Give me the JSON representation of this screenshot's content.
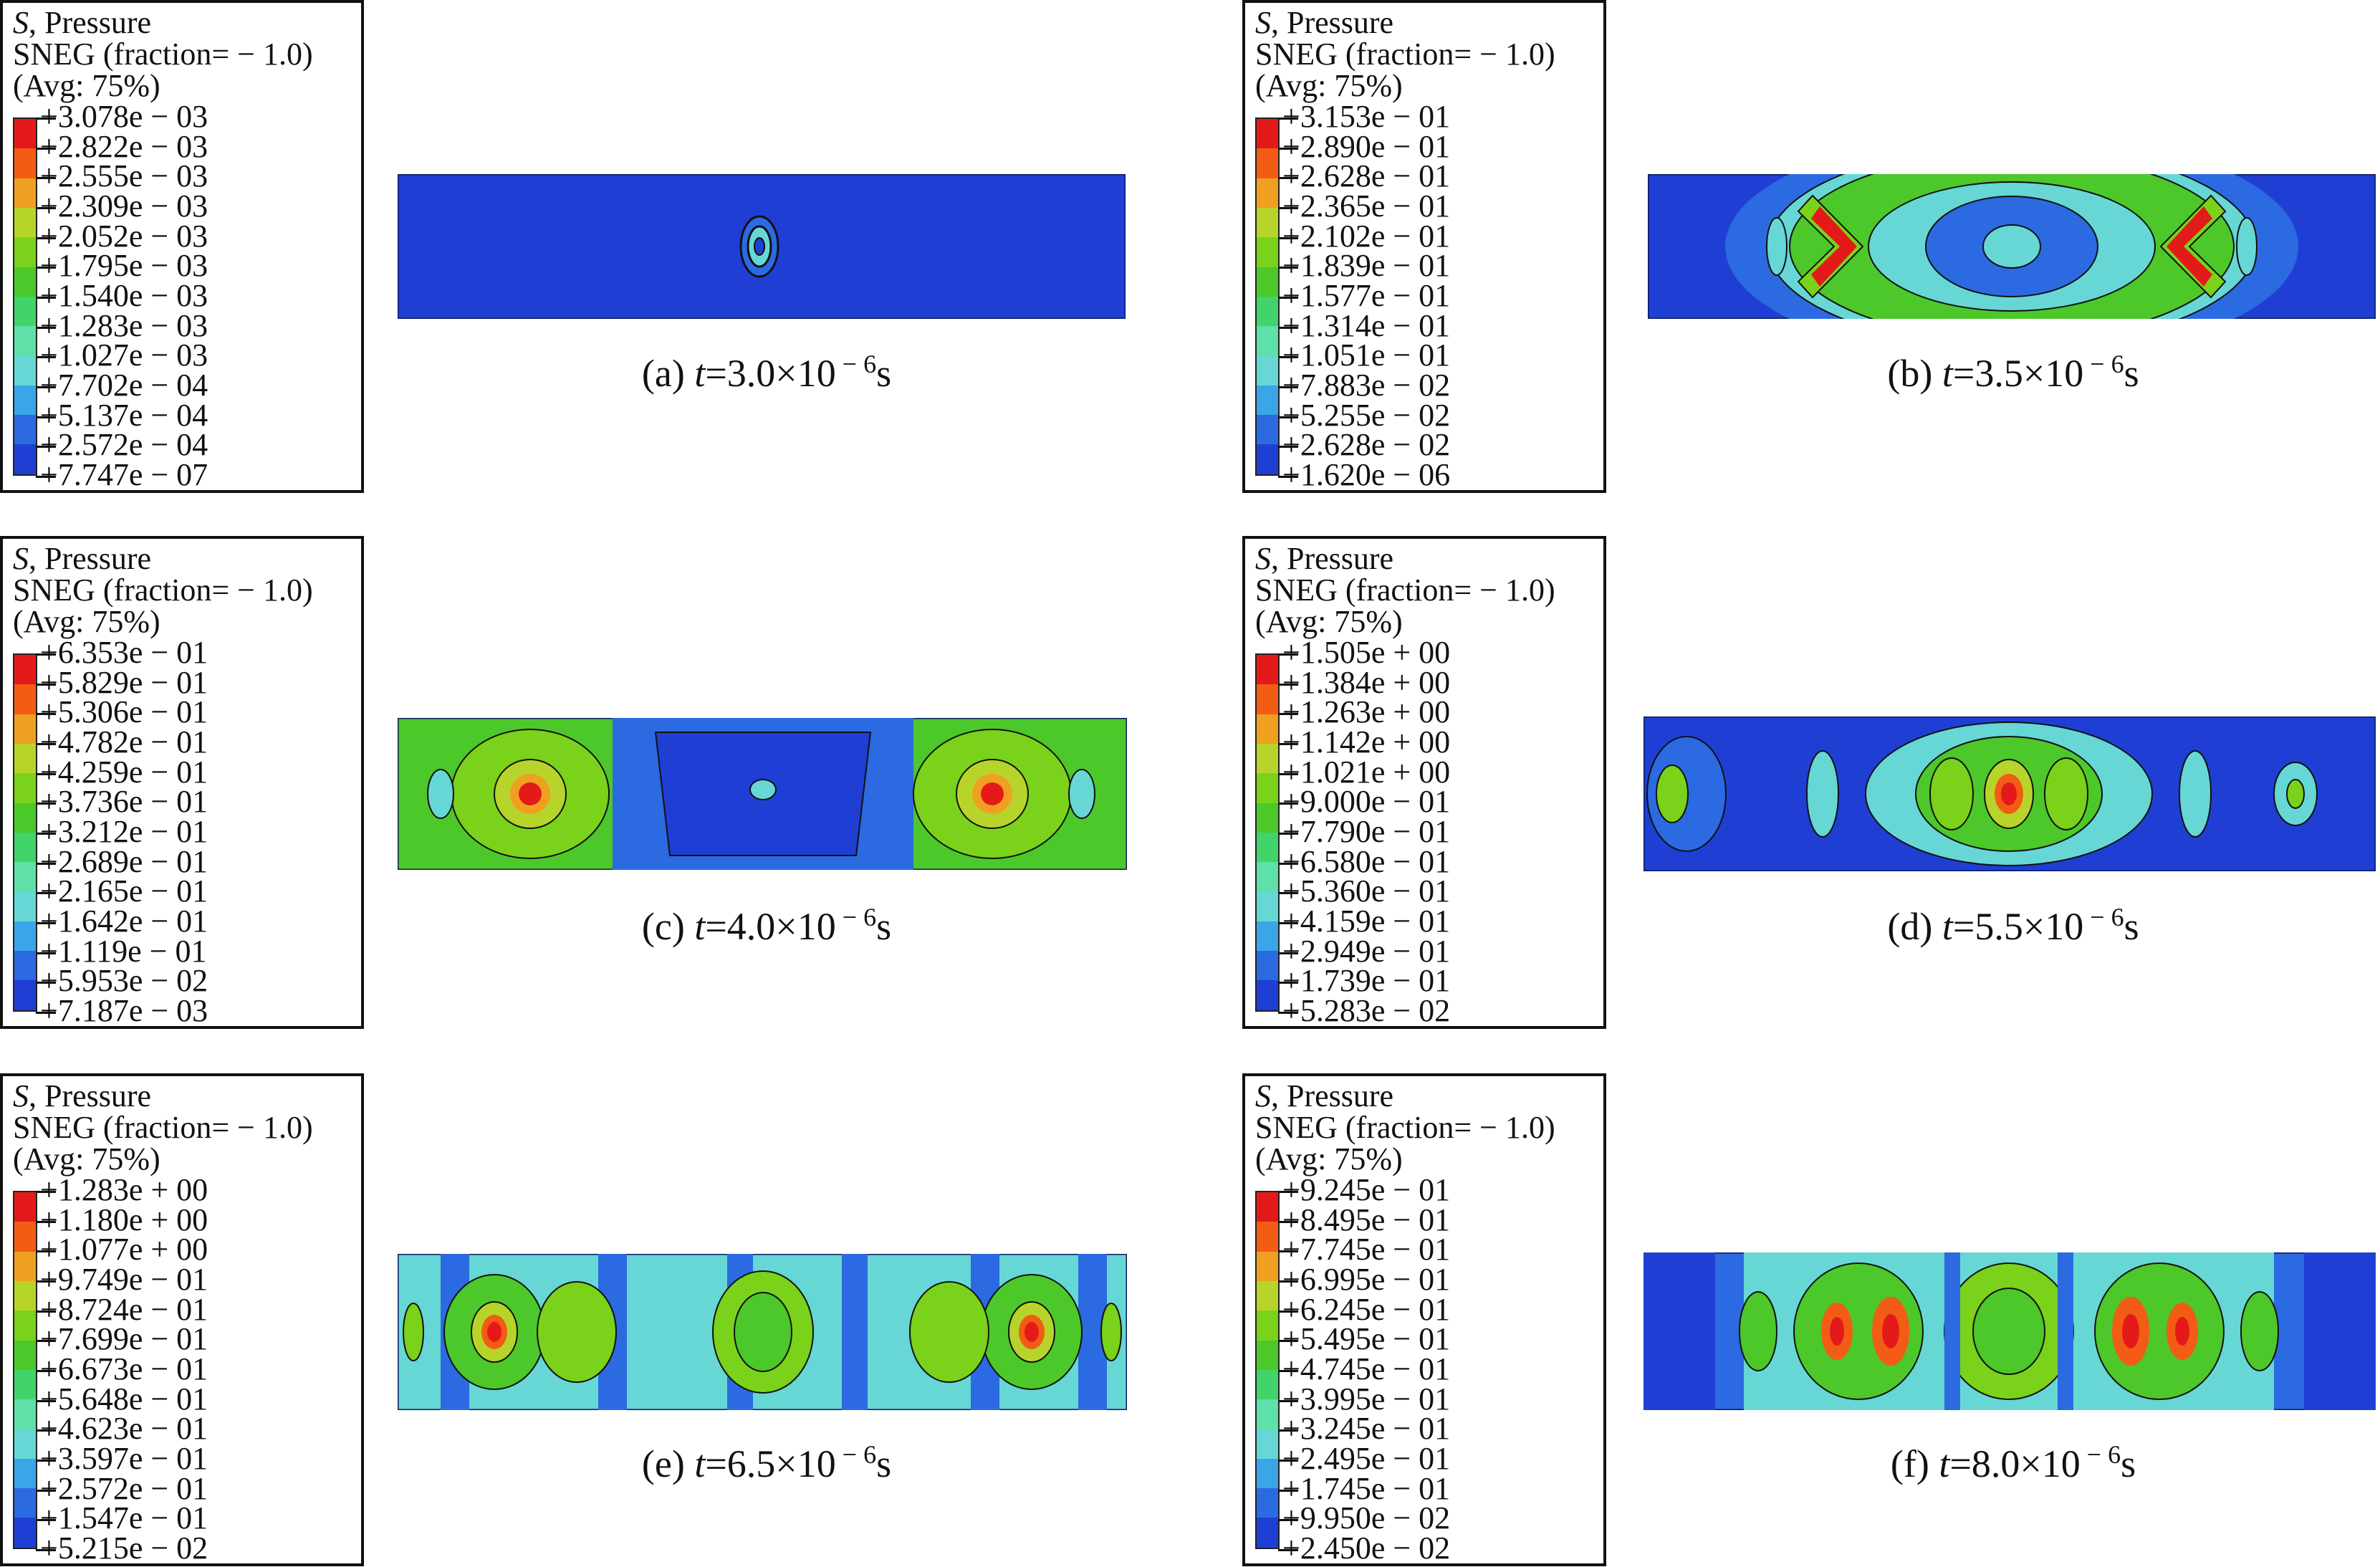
{
  "colors": [
    "#e41a1a",
    "#f25c14",
    "#f0a020",
    "#b7d42b",
    "#7ad21a",
    "#4cc82a",
    "#41d46a",
    "#5fe0a8",
    "#66d7d4",
    "#3aa6e8",
    "#2b6ae0",
    "#1f3fd4"
  ],
  "panels": [
    {
      "id": "a",
      "legend": {
        "line1_var": "S",
        "line1_rest": ", Pressure",
        "line2": "SNEG (fraction= − 1.0)",
        "line3": "(Avg: 75%)",
        "values": [
          "+3.078e − 03",
          "+2.822e − 03",
          "+2.555e − 03",
          "+2.309e − 03",
          "+2.052e − 03",
          "+1.795e − 03",
          "+1.540e − 03",
          "+1.283e − 03",
          "+1.027e − 03",
          "+7.702e − 04",
          "+5.137e − 04",
          "+2.572e − 04",
          "+7.747e − 07"
        ]
      },
      "caption": {
        "prefix": "(a) ",
        "var": "t",
        "value": "=3.0×10",
        "exp": " − 6",
        "unit": "s"
      }
    },
    {
      "id": "b",
      "legend": {
        "line1_var": "S",
        "line1_rest": ", Pressure",
        "line2": "SNEG (fraction= − 1.0)",
        "line3": "(Avg: 75%)",
        "values": [
          "+3.153e − 01",
          "+2.890e − 01",
          "+2.628e − 01",
          "+2.365e − 01",
          "+2.102e − 01",
          "+1.839e − 01",
          "+1.577e − 01",
          "+1.314e − 01",
          "+1.051e − 01",
          "+7.883e − 02",
          "+5.255e − 02",
          "+2.628e − 02",
          "+1.620e − 06"
        ]
      },
      "caption": {
        "prefix": "(b) ",
        "var": "t",
        "value": "=3.5×10",
        "exp": " − 6",
        "unit": "s"
      }
    },
    {
      "id": "c",
      "legend": {
        "line1_var": "S",
        "line1_rest": ", Pressure",
        "line2": "SNEG (fraction= − 1.0)",
        "line3": "(Avg: 75%)",
        "values": [
          "+6.353e − 01",
          "+5.829e − 01",
          "+5.306e − 01",
          "+4.782e − 01",
          "+4.259e − 01",
          "+3.736e − 01",
          "+3.212e − 01",
          "+2.689e − 01",
          "+2.165e − 01",
          "+1.642e − 01",
          "+1.119e − 01",
          "+5.953e − 02",
          "+7.187e − 03"
        ]
      },
      "caption": {
        "prefix": "(c) ",
        "var": "t",
        "value": "=4.0×10",
        "exp": " − 6",
        "unit": "s"
      }
    },
    {
      "id": "d",
      "legend": {
        "line1_var": "S",
        "line1_rest": ", Pressure",
        "line2": "SNEG (fraction= − 1.0)",
        "line3": "(Avg: 75%)",
        "values": [
          "+1.505e + 00",
          "+1.384e + 00",
          "+1.263e + 00",
          "+1.142e + 00",
          "+1.021e + 00",
          "+9.000e − 01",
          "+7.790e − 01",
          "+6.580e − 01",
          "+5.360e − 01",
          "+4.159e − 01",
          "+2.949e − 01",
          "+1.739e − 01",
          "+5.283e − 02"
        ]
      },
      "caption": {
        "prefix": "(d) ",
        "var": "t",
        "value": "=5.5×10",
        "exp": " − 6",
        "unit": "s"
      }
    },
    {
      "id": "e",
      "legend": {
        "line1_var": "S",
        "line1_rest": ", Pressure",
        "line2": "SNEG (fraction= − 1.0)",
        "line3": "(Avg: 75%)",
        "values": [
          "+1.283e + 00",
          "+1.180e + 00",
          "+1.077e + 00",
          "+9.749e − 01",
          "+8.724e − 01",
          "+7.699e − 01",
          "+6.673e − 01",
          "+5.648e − 01",
          "+4.623e − 01",
          "+3.597e − 01",
          "+2.572e − 01",
          "+1.547e − 01",
          "+5.215e − 02"
        ]
      },
      "caption": {
        "prefix": "(e) ",
        "var": "t",
        "value": "=6.5×10",
        "exp": " − 6",
        "unit": "s"
      }
    },
    {
      "id": "f",
      "legend": {
        "line1_var": "S",
        "line1_rest": ", Pressure",
        "line2": "SNEG (fraction= − 1.0)",
        "line3": "(Avg: 75%)",
        "values": [
          "+9.245e − 01",
          "+8.495e − 01",
          "+7.745e − 01",
          "+6.995e − 01",
          "+6.245e − 01",
          "+5.495e − 01",
          "+4.745e − 01",
          "+3.995e − 01",
          "+3.245e − 01",
          "+2.495e − 01",
          "+1.745e − 01",
          "+9.950e − 02",
          "+2.450e − 02"
        ]
      },
      "caption": {
        "prefix": "(f) ",
        "var": "t",
        "value": "=8.0×10",
        "exp": " − 6",
        "unit": "s"
      }
    }
  ]
}
